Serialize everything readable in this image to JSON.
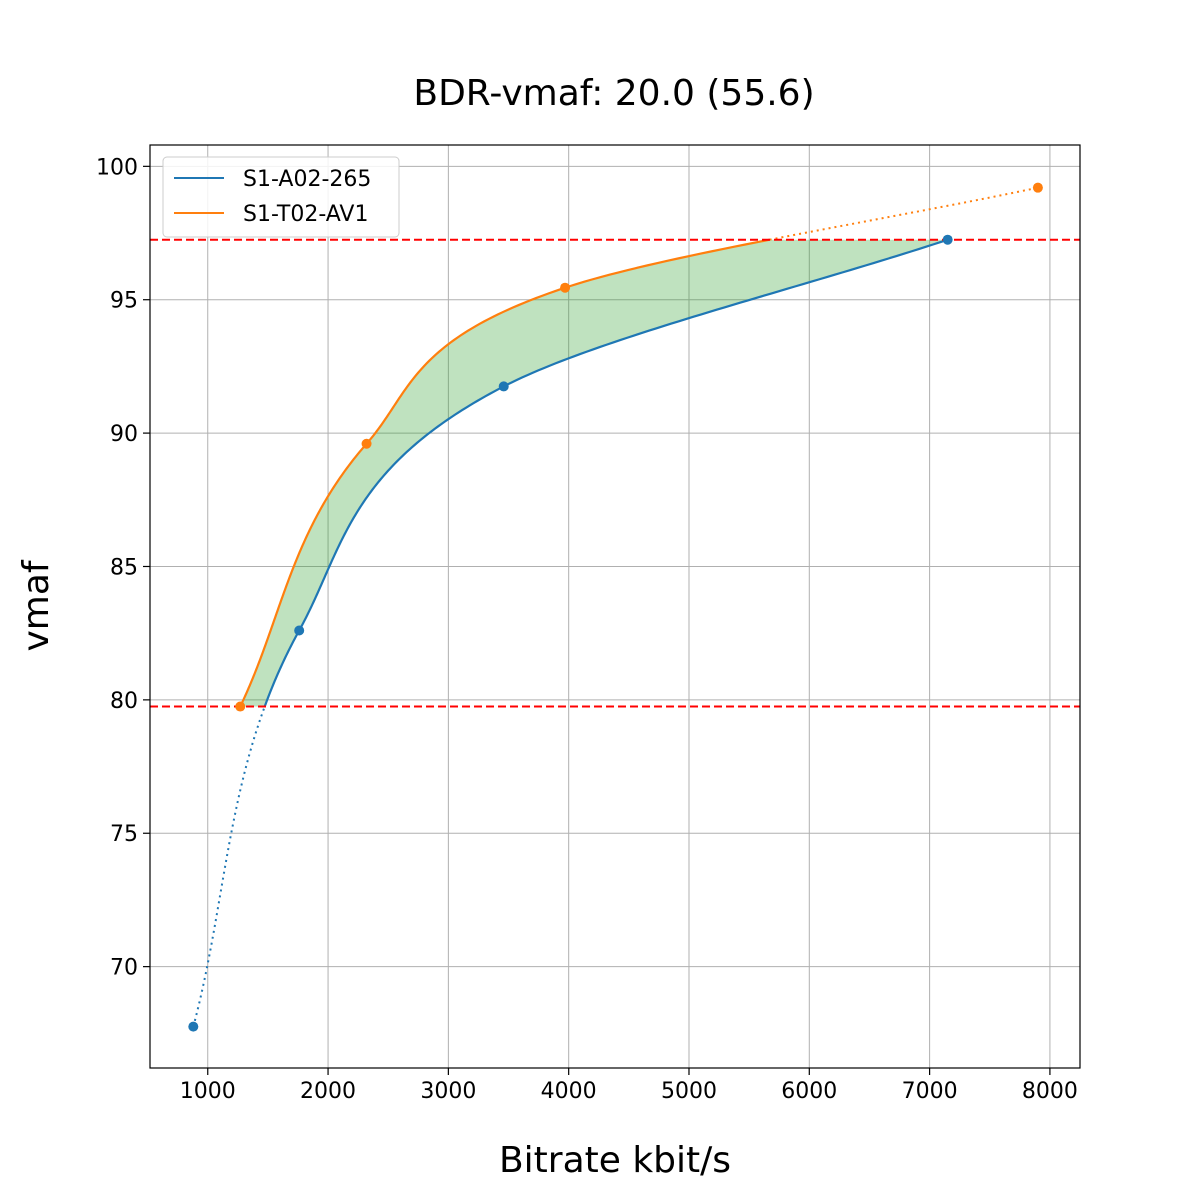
{
  "chart_data": {
    "type": "line",
    "title": "BDR-vmaf: 20.0 (55.6)",
    "xlabel": "Bitrate kbit/s",
    "ylabel": "vmaf",
    "xlim": [
      520,
      8250
    ],
    "ylim": [
      66.2,
      100.8
    ],
    "xticks": [
      1000,
      2000,
      3000,
      4000,
      5000,
      6000,
      7000,
      8000
    ],
    "yticks": [
      70,
      75,
      80,
      85,
      90,
      95,
      100
    ],
    "grid": true,
    "legend_position": "top-left",
    "series": [
      {
        "name": "S1-A02-265",
        "color": "#1f77b4",
        "points": [
          {
            "x": 880,
            "y": 67.75
          },
          {
            "x": 1760,
            "y": 82.6
          },
          {
            "x": 3460,
            "y": 91.75
          },
          {
            "x": 7150,
            "y": 97.25
          }
        ]
      },
      {
        "name": "S1-T02-AV1",
        "color": "#ff7f0e",
        "points": [
          {
            "x": 1270,
            "y": 79.75
          },
          {
            "x": 2320,
            "y": 89.6
          },
          {
            "x": 3970,
            "y": 95.45
          },
          {
            "x": 7900,
            "y": 99.2
          }
        ]
      }
    ],
    "reference_lines": [
      {
        "axis": "y",
        "value": 97.25,
        "color": "#ff0000",
        "style": "dashed"
      },
      {
        "axis": "y",
        "value": 79.75,
        "color": "#ff0000",
        "style": "dashed"
      }
    ],
    "shaded_region": {
      "between": [
        "S1-A02-265",
        "S1-T02-AV1"
      ],
      "y_range": [
        79.75,
        97.25
      ],
      "color": "#2ca02c",
      "opacity": 0.3
    }
  }
}
